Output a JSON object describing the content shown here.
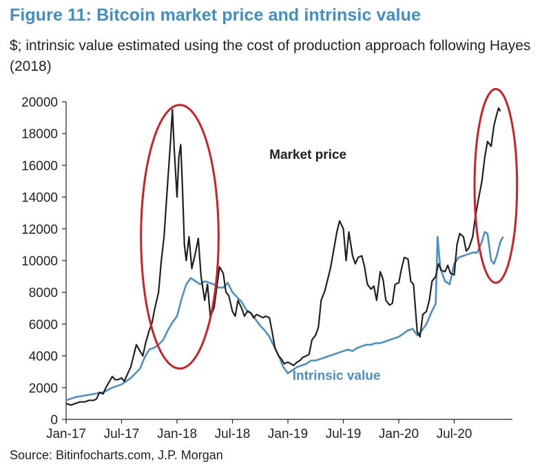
{
  "figure": {
    "title": "Figure 11: Bitcoin market price and intrinsic value",
    "subtitle": "$; intrinsic value estimated using the cost of production approach following Hayes (2018)",
    "source": "Source: Bitinfocharts.com, J.P. Morgan"
  },
  "colors": {
    "title": "#3f8ec4",
    "market_price": "#1f1f1f",
    "intrinsic_value": "#4a8ec9",
    "highlight_ellipse": "#cc1f26",
    "axis": "#222222"
  },
  "chart_data": {
    "type": "line",
    "title": "Figure 11: Bitcoin market price and intrinsic value",
    "xlabel": "",
    "ylabel": "$",
    "ylim": [
      0,
      20000
    ],
    "xlim": [
      0,
      48.3
    ],
    "grid": false,
    "x_ticks": [
      {
        "label": "Jan-17",
        "x": 0
      },
      {
        "label": "Jul-17",
        "x": 6
      },
      {
        "label": "Jan-18",
        "x": 12
      },
      {
        "label": "Jul-18",
        "x": 18
      },
      {
        "label": "Jan-19",
        "x": 24
      },
      {
        "label": "Jul-19",
        "x": 30
      },
      {
        "label": "Jan-20",
        "x": 36
      },
      {
        "label": "Jul-20",
        "x": 42
      }
    ],
    "y_ticks": [
      0,
      2000,
      4000,
      6000,
      8000,
      10000,
      12000,
      14000,
      16000,
      18000,
      20000
    ],
    "series": [
      {
        "name": "Market price",
        "points": [
          [
            0,
            1000
          ],
          [
            0.5,
            900
          ],
          [
            1,
            1000
          ],
          [
            1.5,
            1100
          ],
          [
            2,
            1100
          ],
          [
            2.5,
            1200
          ],
          [
            3,
            1200
          ],
          [
            3.3,
            1300
          ],
          [
            3.6,
            1700
          ],
          [
            4,
            1600
          ],
          [
            4.3,
            2000
          ],
          [
            4.6,
            2300
          ],
          [
            5,
            2700
          ],
          [
            5.3,
            2500
          ],
          [
            5.6,
            2500
          ],
          [
            6,
            2600
          ],
          [
            6.3,
            2400
          ],
          [
            6.6,
            2800
          ],
          [
            7,
            3300
          ],
          [
            7.3,
            4000
          ],
          [
            7.6,
            4700
          ],
          [
            8,
            4300
          ],
          [
            8.3,
            4000
          ],
          [
            8.6,
            4800
          ],
          [
            9,
            5600
          ],
          [
            9.3,
            6100
          ],
          [
            9.6,
            7000
          ],
          [
            10,
            8000
          ],
          [
            10.3,
            10000
          ],
          [
            10.6,
            11500
          ],
          [
            11,
            15000
          ],
          [
            11.3,
            17500
          ],
          [
            11.5,
            19500
          ],
          [
            11.7,
            17000
          ],
          [
            12,
            14000
          ],
          [
            12.2,
            16500
          ],
          [
            12.4,
            17300
          ],
          [
            12.6,
            14500
          ],
          [
            12.8,
            11000
          ],
          [
            13,
            10000
          ],
          [
            13.3,
            11500
          ],
          [
            13.6,
            9500
          ],
          [
            14,
            10500
          ],
          [
            14.3,
            11400
          ],
          [
            14.6,
            9000
          ],
          [
            15,
            7500
          ],
          [
            15.3,
            8500
          ],
          [
            15.6,
            6500
          ],
          [
            16,
            7000
          ],
          [
            16.3,
            8300
          ],
          [
            16.6,
            9600
          ],
          [
            17,
            9200
          ],
          [
            17.3,
            8000
          ],
          [
            17.6,
            7800
          ],
          [
            18,
            6800
          ],
          [
            18.3,
            6500
          ],
          [
            18.6,
            7500
          ],
          [
            19,
            7000
          ],
          [
            19.3,
            6500
          ],
          [
            19.6,
            6800
          ],
          [
            20,
            6700
          ],
          [
            20.3,
            6400
          ],
          [
            20.6,
            6600
          ],
          [
            21,
            6500
          ],
          [
            21.3,
            6400
          ],
          [
            21.6,
            6500
          ],
          [
            22,
            6400
          ],
          [
            22.3,
            5500
          ],
          [
            22.6,
            4500
          ],
          [
            23,
            4000
          ],
          [
            23.3,
            3800
          ],
          [
            23.6,
            3500
          ],
          [
            24,
            3600
          ],
          [
            24.3,
            3500
          ],
          [
            24.6,
            3400
          ],
          [
            25,
            3600
          ],
          [
            25.3,
            3700
          ],
          [
            25.6,
            3900
          ],
          [
            26,
            4000
          ],
          [
            26.3,
            4100
          ],
          [
            26.6,
            5000
          ],
          [
            27,
            5300
          ],
          [
            27.3,
            5800
          ],
          [
            27.6,
            7500
          ],
          [
            28,
            8100
          ],
          [
            28.3,
            8800
          ],
          [
            28.6,
            9500
          ],
          [
            29,
            10800
          ],
          [
            29.3,
            11800
          ],
          [
            29.6,
            12500
          ],
          [
            30,
            12000
          ],
          [
            30.3,
            10000
          ],
          [
            30.6,
            11800
          ],
          [
            31,
            10300
          ],
          [
            31.3,
            9800
          ],
          [
            31.6,
            10200
          ],
          [
            32,
            10300
          ],
          [
            32.3,
            9600
          ],
          [
            32.6,
            8500
          ],
          [
            33,
            8200
          ],
          [
            33.3,
            8400
          ],
          [
            33.6,
            7500
          ],
          [
            34,
            9300
          ],
          [
            34.3,
            8800
          ],
          [
            34.6,
            7500
          ],
          [
            35,
            7200
          ],
          [
            35.3,
            7300
          ],
          [
            35.6,
            8500
          ],
          [
            36,
            8600
          ],
          [
            36.3,
            9500
          ],
          [
            36.6,
            10200
          ],
          [
            37,
            10100
          ],
          [
            37.3,
            8700
          ],
          [
            37.6,
            8500
          ],
          [
            38,
            5500
          ],
          [
            38.3,
            5200
          ],
          [
            38.6,
            6600
          ],
          [
            39,
            6800
          ],
          [
            39.3,
            7500
          ],
          [
            39.6,
            8700
          ],
          [
            40,
            9000
          ],
          [
            40.3,
            9800
          ],
          [
            40.6,
            9400
          ],
          [
            41,
            9300
          ],
          [
            41.3,
            9700
          ],
          [
            41.6,
            9200
          ],
          [
            42,
            9100
          ],
          [
            42.3,
            11000
          ],
          [
            42.6,
            11700
          ],
          [
            43,
            11500
          ],
          [
            43.3,
            10600
          ],
          [
            43.6,
            10800
          ],
          [
            44,
            11500
          ],
          [
            44.3,
            12800
          ],
          [
            44.6,
            13800
          ],
          [
            45,
            15000
          ],
          [
            45.3,
            16500
          ],
          [
            45.6,
            17500
          ],
          [
            46,
            17200
          ],
          [
            46.3,
            18500
          ],
          [
            46.6,
            19200
          ],
          [
            46.8,
            19600
          ],
          [
            47,
            19400
          ]
        ]
      },
      {
        "name": "Intrinsic value",
        "points": [
          [
            0,
            1200
          ],
          [
            1,
            1400
          ],
          [
            2,
            1500
          ],
          [
            3,
            1600
          ],
          [
            4,
            1700
          ],
          [
            5,
            2000
          ],
          [
            6,
            2200
          ],
          [
            7,
            2600
          ],
          [
            7.5,
            2900
          ],
          [
            8,
            3200
          ],
          [
            8.5,
            3900
          ],
          [
            9,
            4400
          ],
          [
            9.5,
            4500
          ],
          [
            10,
            4700
          ],
          [
            10.5,
            5000
          ],
          [
            11,
            5600
          ],
          [
            11.5,
            6100
          ],
          [
            12,
            6500
          ],
          [
            12.5,
            7600
          ],
          [
            13,
            8500
          ],
          [
            13.5,
            8900
          ],
          [
            14,
            8700
          ],
          [
            14.5,
            8500
          ],
          [
            15,
            8700
          ],
          [
            15.5,
            8600
          ],
          [
            16,
            8500
          ],
          [
            16.5,
            8300
          ],
          [
            17,
            8300
          ],
          [
            17.5,
            8600
          ],
          [
            18,
            8000
          ],
          [
            18.5,
            7700
          ],
          [
            19,
            7400
          ],
          [
            19.5,
            6900
          ],
          [
            20,
            6700
          ],
          [
            20.5,
            6300
          ],
          [
            21,
            5900
          ],
          [
            21.5,
            5600
          ],
          [
            22,
            5200
          ],
          [
            22.5,
            4600
          ],
          [
            23,
            4000
          ],
          [
            23.5,
            3300
          ],
          [
            24,
            2900
          ],
          [
            24.5,
            3100
          ],
          [
            25,
            3300
          ],
          [
            25.5,
            3400
          ],
          [
            26,
            3500
          ],
          [
            26.5,
            3700
          ],
          [
            27,
            3700
          ],
          [
            27.5,
            3800
          ],
          [
            28,
            3900
          ],
          [
            28.5,
            4000
          ],
          [
            29,
            4100
          ],
          [
            29.5,
            4200
          ],
          [
            30,
            4300
          ],
          [
            30.5,
            4400
          ],
          [
            31,
            4300
          ],
          [
            31.5,
            4500
          ],
          [
            32,
            4600
          ],
          [
            32.5,
            4700
          ],
          [
            33,
            4700
          ],
          [
            33.5,
            4800
          ],
          [
            34,
            4800
          ],
          [
            34.5,
            4900
          ],
          [
            35,
            5000
          ],
          [
            35.5,
            5100
          ],
          [
            36,
            5200
          ],
          [
            36.5,
            5400
          ],
          [
            37,
            5600
          ],
          [
            37.5,
            5700
          ],
          [
            38,
            5300
          ],
          [
            38.5,
            5600
          ],
          [
            39,
            6000
          ],
          [
            39.5,
            6700
          ],
          [
            40,
            7300
          ],
          [
            40.2,
            11500
          ],
          [
            40.5,
            9500
          ],
          [
            41,
            8700
          ],
          [
            41.5,
            8500
          ],
          [
            42,
            9800
          ],
          [
            42.5,
            10200
          ],
          [
            43,
            10300
          ],
          [
            43.5,
            10400
          ],
          [
            44,
            10500
          ],
          [
            44.5,
            10500
          ],
          [
            45,
            11200
          ],
          [
            45.3,
            11800
          ],
          [
            45.6,
            11700
          ],
          [
            46,
            10000
          ],
          [
            46.3,
            9800
          ],
          [
            46.6,
            10300
          ],
          [
            47,
            11200
          ],
          [
            47.3,
            11500
          ]
        ]
      }
    ],
    "annotations": [
      {
        "text": "Market price",
        "x": 22,
        "y": 16400,
        "series": "Market price"
      },
      {
        "text": "Intrinsic value",
        "x": 24.5,
        "y": 2500,
        "series": "Intrinsic value"
      }
    ],
    "highlights": [
      {
        "label": "peak-2017",
        "center_x": 12.3,
        "center_y": 11500,
        "radius_x": 4.2,
        "radius_y": 8300
      },
      {
        "label": "peak-2020",
        "center_x": 46.5,
        "center_y": 14700,
        "radius_x": 2.3,
        "radius_y": 6100
      }
    ]
  }
}
